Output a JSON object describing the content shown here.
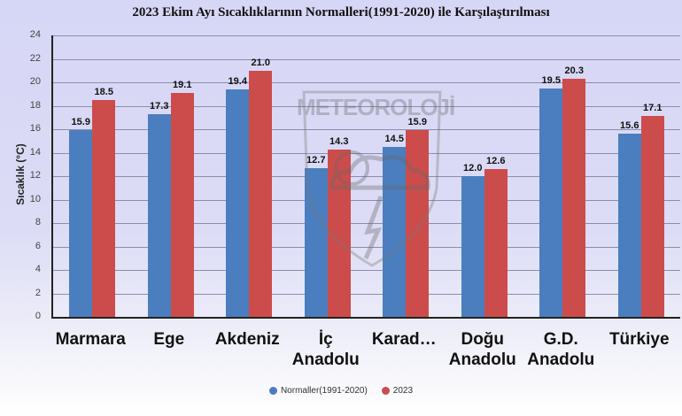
{
  "chart_data": {
    "type": "bar",
    "title": "2023 Ekim Ayı Sıcaklıklarının Normalleri(1991-2020) ile Karşılaştırılması",
    "xlabel": "",
    "ylabel": "Sıcaklık (°C)",
    "ylim": [
      0,
      24
    ],
    "yticks": [
      0,
      2,
      4,
      6,
      8,
      10,
      12,
      14,
      16,
      18,
      20,
      22,
      24
    ],
    "grid": true,
    "legend_position": "bottom",
    "categories": [
      "Marmara",
      "Ege",
      "Akdeniz",
      "İç Anadolu",
      "Karad…",
      "Doğu Anadolu",
      "G.D. Anadolu",
      "Türkiye"
    ],
    "series": [
      {
        "name": "Normaller(1991-2020)",
        "color": "#4a7ebf",
        "values": [
          15.9,
          17.3,
          19.4,
          12.7,
          14.5,
          12.0,
          19.5,
          15.6
        ]
      },
      {
        "name": "2023",
        "color": "#cc4c4c",
        "values": [
          18.5,
          19.1,
          21.0,
          14.3,
          15.9,
          12.6,
          20.3,
          17.1
        ]
      }
    ],
    "annotations": [
      "METEOROLOJİ watermark"
    ]
  },
  "ui": {
    "title": "2023 Ekim Ayı Sıcaklıklarının Normalleri(1991-2020) ile Karşılaştırılması",
    "ylabel": "Sıcaklık (°C)",
    "watermark": "METEOROLOJİ",
    "category_lines": [
      [
        "Marmara"
      ],
      [
        "Ege"
      ],
      [
        "Akdeniz"
      ],
      [
        "İç",
        "Anadolu"
      ],
      [
        "Karad…"
      ],
      [
        "Doğu",
        "Anadolu"
      ],
      [
        "G.D.",
        "Anadolu"
      ],
      [
        "Türkiye"
      ]
    ],
    "legend": [
      {
        "label": "Normaller(1991-2020)",
        "color": "#4a7ebf"
      },
      {
        "label": "2023",
        "color": "#cc4c4c"
      }
    ]
  }
}
